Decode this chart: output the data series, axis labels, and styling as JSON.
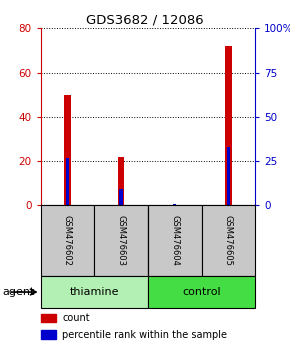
{
  "title": "GDS3682 / 12086",
  "samples": [
    "GSM476602",
    "GSM476603",
    "GSM476604",
    "GSM476605"
  ],
  "red_values": [
    50,
    22,
    0,
    72
  ],
  "blue_values_pct": [
    27,
    9,
    1,
    33
  ],
  "left_ylim": [
    0,
    80
  ],
  "right_ylim": [
    0,
    100
  ],
  "left_yticks": [
    0,
    20,
    40,
    60,
    80
  ],
  "right_yticks": [
    0,
    25,
    50,
    75,
    100
  ],
  "right_yticklabels": [
    "0",
    "25",
    "50",
    "75",
    "100%"
  ],
  "left_ytick_color": "#cc0000",
  "right_ytick_color": "#0000cc",
  "bar_red": "#cc0000",
  "bar_blue": "#0000cc",
  "red_bar_width": 0.12,
  "blue_bar_width": 0.06,
  "groups": [
    {
      "label": "thiamine",
      "samples": [
        0,
        1
      ],
      "color": "#b3f0b3"
    },
    {
      "label": "control",
      "samples": [
        2,
        3
      ],
      "color": "#44dd44"
    }
  ],
  "agent_label": "agent",
  "legend_items": [
    {
      "color": "#cc0000",
      "label": "count"
    },
    {
      "color": "#0000cc",
      "label": "percentile rank within the sample"
    }
  ],
  "label_area_color": "#c8c8c8",
  "label_border_color": "#000000",
  "fig_width": 2.9,
  "fig_height": 3.54,
  "dpi": 100
}
